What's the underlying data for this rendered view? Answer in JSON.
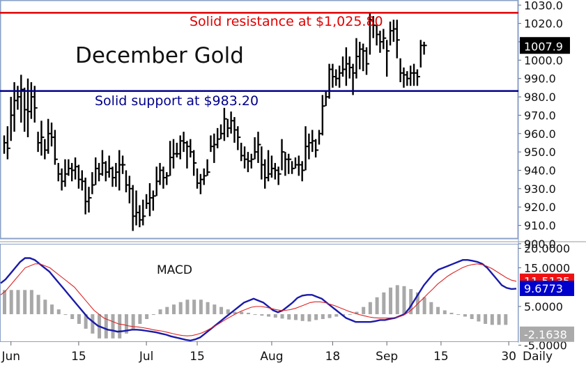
{
  "chart_data": [
    {
      "type": "bar",
      "title": "December Gold",
      "price_label": "1007.9",
      "ylim": [
        903,
        1032
      ],
      "y_ticks": [
        "1030.0",
        "1020.0",
        "1010.0",
        "1000.0",
        "990.0",
        "980.0",
        "970.0",
        "960.0",
        "950.0",
        "940.0",
        "930.0",
        "920.0",
        "910.0",
        "900.0"
      ],
      "y_tick_values": [
        1030,
        1020,
        1010,
        1000,
        990,
        980,
        970,
        960,
        950,
        940,
        930,
        920,
        910,
        900
      ],
      "resistance": {
        "value": 1025.8,
        "label": "Solid resistance at $1,025.80",
        "color": "#e00000"
      },
      "support": {
        "value": 983.2,
        "label": "Solid support at $983.20",
        "color": "#00008b"
      },
      "bars": [
        [
          959,
          949,
          955
        ],
        [
          964,
          946,
          952
        ],
        [
          980,
          956,
          970
        ],
        [
          988,
          961,
          978
        ],
        [
          986,
          973,
          980
        ],
        [
          992,
          966,
          984
        ],
        [
          985,
          961,
          973
        ],
        [
          990,
          958,
          972
        ],
        [
          988,
          968,
          980
        ],
        [
          986,
          966,
          974
        ],
        [
          961,
          950,
          955
        ],
        [
          967,
          948,
          958
        ],
        [
          957,
          946,
          951
        ],
        [
          968,
          949,
          960
        ],
        [
          966,
          953,
          958
        ],
        [
          962,
          943,
          946
        ],
        [
          944,
          934,
          938
        ],
        [
          941,
          929,
          934
        ],
        [
          946,
          931,
          938
        ],
        [
          946,
          937,
          941
        ],
        [
          944,
          934,
          940
        ],
        [
          947,
          935,
          942
        ],
        [
          943,
          930,
          935
        ],
        [
          940,
          929,
          934
        ],
        [
          936,
          916,
          923
        ],
        [
          931,
          917,
          925
        ],
        [
          939,
          927,
          932
        ],
        [
          947,
          932,
          941
        ],
        [
          944,
          934,
          938
        ],
        [
          951,
          937,
          944
        ],
        [
          945,
          934,
          939
        ],
        [
          948,
          936,
          941
        ],
        [
          942,
          931,
          936
        ],
        [
          944,
          931,
          939
        ],
        [
          951,
          929,
          943
        ],
        [
          948,
          938,
          943
        ],
        [
          940,
          928,
          932
        ],
        [
          937,
          922,
          930
        ],
        [
          932,
          907,
          915
        ],
        [
          929,
          910,
          917
        ],
        [
          921,
          909,
          913
        ],
        [
          924,
          910,
          915
        ],
        [
          927,
          919,
          922
        ],
        [
          933,
          915,
          925
        ],
        [
          929,
          918,
          926
        ],
        [
          942,
          926,
          934
        ],
        [
          944,
          932,
          940
        ],
        [
          942,
          930,
          936
        ],
        [
          939,
          932,
          937
        ],
        [
          956,
          937,
          947
        ],
        [
          957,
          941,
          949
        ],
        [
          955,
          947,
          949
        ],
        [
          959,
          946,
          956
        ],
        [
          961,
          950,
          955
        ],
        [
          956,
          941,
          953
        ],
        [
          957,
          947,
          950
        ],
        [
          951,
          937,
          944
        ],
        [
          941,
          930,
          933
        ],
        [
          938,
          927,
          935
        ],
        [
          941,
          932,
          937
        ],
        [
          946,
          937,
          939
        ],
        [
          959,
          950,
          953
        ],
        [
          960,
          944,
          954
        ],
        [
          963,
          952,
          957
        ],
        [
          965,
          957,
          960
        ],
        [
          974,
          956,
          968
        ],
        [
          968,
          958,
          963
        ],
        [
          972,
          960,
          967
        ],
        [
          969,
          955,
          962
        ],
        [
          964,
          951,
          958
        ],
        [
          955,
          945,
          948
        ],
        [
          953,
          941,
          946
        ],
        [
          950,
          939,
          945
        ],
        [
          949,
          941,
          946
        ],
        [
          958,
          946,
          950
        ],
        [
          961,
          944,
          954
        ],
        [
          953,
          935,
          943
        ],
        [
          946,
          930,
          936
        ],
        [
          951,
          934,
          938
        ],
        [
          948,
          936,
          941
        ],
        [
          944,
          935,
          940
        ],
        [
          942,
          932,
          938
        ],
        [
          957,
          940,
          950
        ],
        [
          950,
          937,
          946
        ],
        [
          949,
          938,
          946
        ],
        [
          945,
          938,
          941
        ],
        [
          947,
          941,
          943
        ],
        [
          948,
          937,
          943
        ],
        [
          945,
          934,
          940
        ],
        [
          964,
          940,
          953
        ],
        [
          960,
          946,
          955
        ],
        [
          962,
          950,
          956
        ],
        [
          957,
          947,
          951
        ],
        [
          962,
          954,
          960
        ],
        [
          981,
          959,
          975
        ],
        [
          983,
          975,
          980
        ],
        [
          998,
          979,
          995
        ],
        [
          998,
          985,
          991
        ],
        [
          995,
          986,
          990
        ],
        [
          997,
          985,
          993
        ],
        [
          1002,
          991,
          995
        ],
        [
          1007,
          986,
          998
        ],
        [
          1002,
          990,
          996
        ],
        [
          998,
          981,
          993
        ],
        [
          1012,
          990,
          1002
        ],
        [
          1010,
          995,
          1006
        ],
        [
          1009,
          994,
          1005
        ],
        [
          1007,
          992,
          998
        ],
        [
          1026,
          1003,
          1022
        ],
        [
          1024,
          1012,
          1019
        ],
        [
          1019,
          1008,
          1014
        ],
        [
          1016,
          1004,
          1010
        ],
        [
          1017,
          1006,
          1012
        ],
        [
          1011,
          991,
          1005
        ],
        [
          1021,
          1008,
          1016
        ],
        [
          1022,
          1010,
          1017
        ],
        [
          1022,
          1001,
          1011
        ],
        [
          1001,
          988,
          993
        ],
        [
          996,
          985,
          992
        ],
        [
          994,
          986,
          990
        ],
        [
          997,
          986,
          993
        ],
        [
          998,
          986,
          993
        ],
        [
          995,
          986,
          991
        ],
        [
          1011,
          996,
          1008
        ],
        [
          1010,
          1003,
          1008
        ]
      ],
      "x_ticks": [
        {
          "label": "Jun",
          "bar": 2
        },
        {
          "label": "15",
          "bar": 22
        },
        {
          "label": "Jul",
          "bar": 42
        },
        {
          "label": "15",
          "bar": 57
        },
        {
          "label": "Aug",
          "bar": 79
        },
        {
          "label": "18",
          "bar": 97
        },
        {
          "label": "Sep",
          "bar": 113
        },
        {
          "label": "15",
          "bar": 129
        },
        {
          "label": "30",
          "bar": 149
        }
      ],
      "x_period_label": "Daily"
    },
    {
      "type": "line",
      "title": "MACD",
      "ylim": [
        -4,
        21
      ],
      "y_ticks": [
        "20.0000",
        "15.0000",
        "5.0000",
        "-5.0000"
      ],
      "y_tick_values": [
        20,
        15,
        5,
        -5
      ],
      "value_labels": [
        {
          "text": "11.5135",
          "value": 11.5135,
          "bg": "#ee1111",
          "fg": "#ffffff"
        },
        {
          "text": "9.6773",
          "value": 9.6773,
          "bg": "#0000cc",
          "fg": "#ffffff"
        },
        {
          "text": "-2.1638",
          "value": -2.1638,
          "bg": "#aaaaaa",
          "fg": "#ffffff"
        }
      ],
      "series": [
        {
          "color": "#1a1aaa",
          "values": [
            11,
            12,
            13.5,
            15,
            16.5,
            17.5,
            17.5,
            17,
            16,
            15,
            14,
            12.5,
            11,
            9.5,
            8,
            6.5,
            5,
            3.5,
            2,
            1,
            0,
            -0.5,
            -1,
            -1.2,
            -1.5,
            -1.4,
            -1.2,
            -1,
            -1,
            -1.1,
            -1.3,
            -1.5,
            -1.7,
            -2,
            -2.3,
            -2.7,
            -3,
            -3.3,
            -3.6,
            -3.8,
            -3.5,
            -3,
            -2,
            -1,
            0,
            1,
            2,
            3,
            4,
            5,
            6,
            6.5,
            7,
            6.5,
            6,
            5,
            4,
            3.5,
            4,
            5,
            6,
            7.2,
            7.8,
            8,
            8,
            7.5,
            7,
            6,
            5,
            4,
            3,
            2,
            1.5,
            1,
            1,
            1,
            1,
            1.2,
            1.5,
            1.5,
            1.8,
            2,
            2.5,
            3,
            4.5,
            6.5,
            8.5,
            10.5,
            12,
            13.5,
            14.5,
            15,
            15.5,
            16,
            16.5,
            17,
            17,
            16.8,
            16.5,
            16,
            15,
            13.5,
            12,
            10.5,
            9.8,
            9.5,
            9.6
          ]
        },
        {
          "color": "#dd2222",
          "values": [
            8,
            9,
            10.5,
            12,
            13.5,
            15,
            15.5,
            16,
            16,
            15.5,
            15,
            14,
            13,
            12,
            11,
            10,
            8.5,
            7,
            5.5,
            4,
            3,
            2,
            1.5,
            1,
            0.5,
            0.3,
            0,
            -0.2,
            -0.3,
            -0.5,
            -0.7,
            -1,
            -1.2,
            -1.4,
            -1.7,
            -2,
            -2.3,
            -2.5,
            -2.6,
            -2.5,
            -2.2,
            -1.8,
            -1.2,
            -0.5,
            0.2,
            1,
            1.8,
            2.5,
            3.2,
            3.8,
            4.3,
            4.8,
            5,
            5,
            4.8,
            4.5,
            4.2,
            4,
            4,
            4.2,
            4.5,
            5,
            5.5,
            6,
            6.2,
            6.2,
            6,
            5.6,
            5.2,
            4.7,
            4.2,
            3.7,
            3.3,
            2.9,
            2.6,
            2.3,
            2.1,
            2,
            2,
            2,
            2.1,
            2.3,
            2.7,
            3.5,
            4.5,
            5.8,
            7,
            8.3,
            9.5,
            10.8,
            11.8,
            12.8,
            13.6,
            14.3,
            15,
            15.5,
            15.8,
            16,
            15.8,
            15.4,
            14.8,
            14,
            13.2,
            12.4,
            11.8,
            11.5
          ]
        }
      ],
      "histogram": [
        5,
        5,
        5,
        5,
        5,
        4,
        3,
        2,
        1,
        0,
        -1,
        -2,
        -3,
        -4,
        -5,
        -5,
        -5,
        -5,
        -4,
        -3,
        -2,
        -1,
        0,
        1,
        1.5,
        2,
        2.5,
        3,
        3,
        3,
        2.5,
        2,
        1.5,
        1,
        0.5,
        0.5,
        0.3,
        0,
        -0.3,
        -0.5,
        -0.7,
        -0.9,
        -1.1,
        -1.2,
        -1.4,
        -1.5,
        -1.2,
        -1,
        -0.8,
        -0.5,
        -0.3,
        0,
        0.5,
        1.5,
        2.5,
        3.5,
        4.5,
        5.5,
        6,
        5.8,
        5.2,
        4.5,
        3.5,
        2.5,
        1.5,
        0.8,
        0.3,
        0,
        -0.5,
        -1,
        -1.5,
        -2,
        -2.2,
        -2.2,
        -2.2
      ]
    }
  ],
  "legend": {
    "macd_label": "MACD"
  }
}
